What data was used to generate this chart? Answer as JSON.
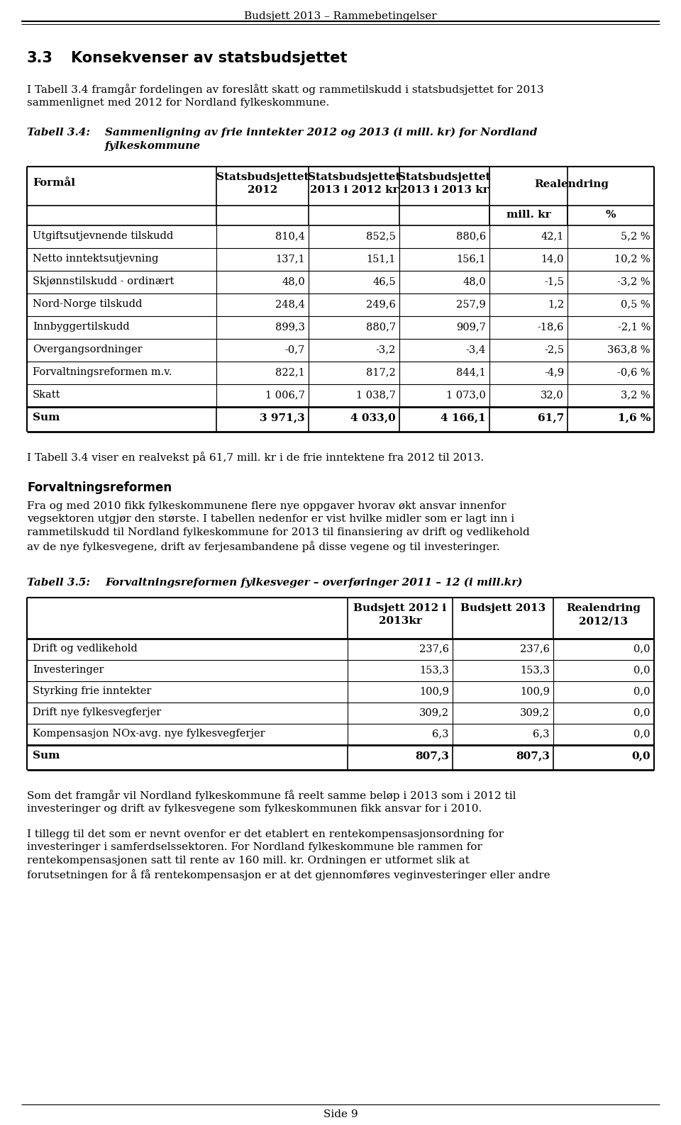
{
  "page_header": "Budsjett 2013 – Rammebetingelser",
  "section_title": "3.3    Konsekvenser av statsbudsjettet",
  "para1": "I Tabell 3.4 framgår fordelingen av foreslått skatt og rammetilskudd i statsbudsjettet for 2013\nsammenlignet med 2012 for Nordland fylkeskommune.",
  "table1_caption_label": "Tabell 3.4:",
  "table1_caption_text": "Sammenligning av frie inntekter 2012 og 2013 (i mill. kr) for Nordland\nfylkeskommune",
  "table1_rows": [
    [
      "Utgiftsutjevnende tilskudd",
      "810,4",
      "852,5",
      "880,6",
      "42,1",
      "5,2 %"
    ],
    [
      "Netto inntektsutjevning",
      "137,1",
      "151,1",
      "156,1",
      "14,0",
      "10,2 %"
    ],
    [
      "Skjønnstilskudd - ordinært",
      "48,0",
      "46,5",
      "48,0",
      "-1,5",
      "-3,2 %"
    ],
    [
      "Nord-Norge tilskudd",
      "248,4",
      "249,6",
      "257,9",
      "1,2",
      "0,5 %"
    ],
    [
      "Innbyggertilskudd",
      "899,3",
      "880,7",
      "909,7",
      "-18,6",
      "-2,1 %"
    ],
    [
      "Overgangsordninger",
      "-0,7",
      "-3,2",
      "-3,4",
      "-2,5",
      "363,8 %"
    ],
    [
      "Forvaltningsreformen m.v.",
      "822,1",
      "817,2",
      "844,1",
      "-4,9",
      "-0,6 %"
    ],
    [
      "Skatt",
      "1 006,7",
      "1 038,7",
      "1 073,0",
      "32,0",
      "3,2 %"
    ]
  ],
  "table1_sum": [
    "Sum",
    "3 971,3",
    "4 033,0",
    "4 166,1",
    "61,7",
    "1,6 %"
  ],
  "para2": "I Tabell 3.4 viser en realvekst på 61,7 mill. kr i de frie inntektene fra 2012 til 2013.",
  "section2_title": "Forvaltningsreformen",
  "para3": "Fra og med 2010 fikk fylkeskommunene flere nye oppgaver hvorav økt ansvar innenfor\nvegsektoren utgjør den største. I tabellen nedenfor er vist hvilke midler som er lagt inn i\nrammetilskudd til Nordland fylkeskommune for 2013 til finansiering av drift og vedlikehold\nav de nye fylkesvegene, drift av ferjesambandene på disse vegene og til investeringer.",
  "table2_caption_label": "Tabell 3.5:",
  "table2_caption_text": "Forvaltningsreformen fylkesveger – overføringer 2011 – 12 (i mill.kr)",
  "table2_rows": [
    [
      "Drift og vedlikehold",
      "237,6",
      "237,6",
      "0,0"
    ],
    [
      "Investeringer",
      "153,3",
      "153,3",
      "0,0"
    ],
    [
      "Styrking frie inntekter",
      "100,9",
      "100,9",
      "0,0"
    ],
    [
      "Drift nye fylkesvegferjer",
      "309,2",
      "309,2",
      "0,0"
    ],
    [
      "Kompensasjon NOx-avg. nye fylkesvegferjer",
      "6,3",
      "6,3",
      "0,0"
    ]
  ],
  "table2_sum": [
    "Sum",
    "807,3",
    "807,3",
    "0,0"
  ],
  "para4": "Som det framgår vil Nordland fylkeskommune få reelt samme beløp i 2013 som i 2012 til\ninvesteringer og drift av fylkesvegene som fylkeskommunen fikk ansvar for i 2010.",
  "para5": "I tillegg til det som er nevnt ovenfor er det etablert en rentekompensasjonsordning for\ninvesteringer i samferdselssektoren. For Nordland fylkeskommune ble rammen for\nrentekompensasjonen satt til rente av 160 mill. kr. Ordningen er utformet slik at\nforutsetningen for å få rentekompensasjon er at det gjennomføres veginvesteringer eller andre",
  "page_footer": "Side 9",
  "bg_color": "#ffffff"
}
